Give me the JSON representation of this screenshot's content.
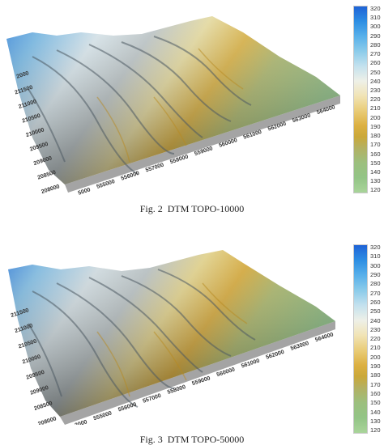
{
  "figures": [
    {
      "caption": "Fig. 2  DTM TOPO-10000",
      "colorbar": {
        "labels": [
          "320",
          "310",
          "300",
          "290",
          "280",
          "270",
          "260",
          "250",
          "240",
          "230",
          "220",
          "210",
          "200",
          "190",
          "180",
          "170",
          "160",
          "150",
          "140",
          "130",
          "120"
        ]
      },
      "axes": {
        "x_ticks": [
          "5000",
          "555000",
          "556000",
          "557000",
          "558000",
          "559000",
          "560000",
          "561000",
          "562000",
          "563000",
          "564000"
        ],
        "y_ticks": [
          "2000",
          "211500",
          "211000",
          "210500",
          "210000",
          "209500",
          "209000",
          "208500",
          "208000"
        ],
        "depth_ticks": []
      }
    },
    {
      "caption": "Fig. 3  DTM TOPO-50000",
      "colorbar": {
        "labels": [
          "320",
          "310",
          "300",
          "290",
          "280",
          "270",
          "260",
          "250",
          "240",
          "230",
          "220",
          "210",
          "200",
          "190",
          "180",
          "170",
          "160",
          "150",
          "140",
          "130",
          "120"
        ]
      },
      "axes": {
        "x_ticks": [
          "2000",
          "555000",
          "556000",
          "557000",
          "558000",
          "559000",
          "560000",
          "561000",
          "562000",
          "563000",
          "564000"
        ],
        "y_ticks": [
          "211500",
          "211000",
          "210500",
          "210000",
          "209500",
          "209000",
          "208500",
          "208000"
        ],
        "depth_ticks": []
      }
    }
  ],
  "colors": {
    "high": "#1f63d6",
    "mid_light": "#eef0e8",
    "mid_yellow": "#dcb042",
    "low": "#93c486",
    "base": "#a4a4a4"
  }
}
